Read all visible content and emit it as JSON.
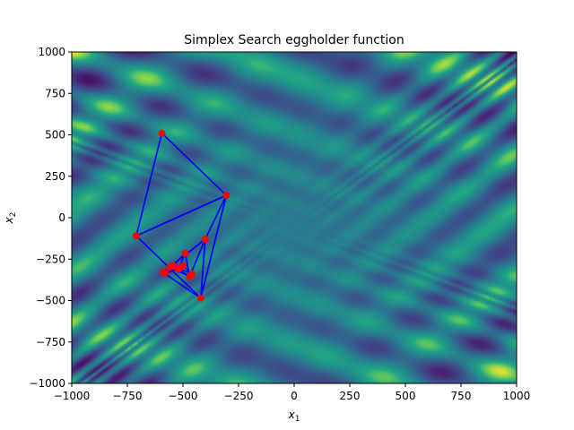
{
  "chart_data": {
    "type": "heatmap",
    "title": "Simplex Search eggholder function",
    "xlabel": {
      "base": "x",
      "sub": "1"
    },
    "ylabel": {
      "base": "x",
      "sub": "2"
    },
    "xlim": [
      -1000,
      1000
    ],
    "ylim": [
      -1000,
      1000
    ],
    "x_ticks": [
      -1000,
      -750,
      -500,
      -250,
      0,
      250,
      500,
      750,
      1000
    ],
    "y_ticks": [
      -1000,
      -750,
      -500,
      -250,
      0,
      250,
      500,
      750,
      1000
    ],
    "x_tick_labels": [
      "−1000",
      "−750",
      "−500",
      "−250",
      "0",
      "250",
      "500",
      "750",
      "1000"
    ],
    "y_tick_labels": [
      "−1000",
      "−750",
      "−500",
      "−250",
      "0",
      "250",
      "500",
      "750",
      "1000"
    ],
    "colormap": "viridis",
    "grid": false,
    "simplex_points": [
      [
        -595,
        510
      ],
      [
        -305,
        135
      ],
      [
        -710,
        -110
      ],
      [
        -400,
        -130
      ],
      [
        -420,
        -485
      ],
      [
        -470,
        -355
      ],
      [
        -490,
        -215
      ],
      [
        -560,
        -300
      ],
      [
        -590,
        -330
      ],
      [
        -545,
        -290
      ],
      [
        -520,
        -310
      ],
      [
        -500,
        -290
      ],
      [
        -460,
        -340
      ],
      [
        -580,
        -335
      ],
      [
        -530,
        -300
      ]
    ],
    "simplex_triangles": [
      [
        [
          -595,
          510
        ],
        [
          -305,
          135
        ],
        [
          -710,
          -110
        ]
      ],
      [
        [
          -305,
          135
        ],
        [
          -710,
          -110
        ],
        [
          -420,
          -485
        ]
      ],
      [
        [
          -305,
          135
        ],
        [
          -400,
          -130
        ],
        [
          -420,
          -485
        ]
      ],
      [
        [
          -400,
          -130
        ],
        [
          -420,
          -485
        ],
        [
          -590,
          -330
        ]
      ],
      [
        [
          -400,
          -130
        ],
        [
          -470,
          -355
        ],
        [
          -560,
          -300
        ]
      ],
      [
        [
          -490,
          -215
        ],
        [
          -470,
          -355
        ],
        [
          -545,
          -290
        ]
      ],
      [
        [
          -490,
          -215
        ],
        [
          -520,
          -310
        ],
        [
          -580,
          -335
        ]
      ],
      [
        [
          -500,
          -290
        ],
        [
          -460,
          -340
        ],
        [
          -530,
          -300
        ]
      ],
      [
        [
          -500,
          -290
        ],
        [
          -545,
          -290
        ],
        [
          -580,
          -335
        ]
      ]
    ],
    "line_color": "#0000ff",
    "point_color": "#ff0000"
  }
}
